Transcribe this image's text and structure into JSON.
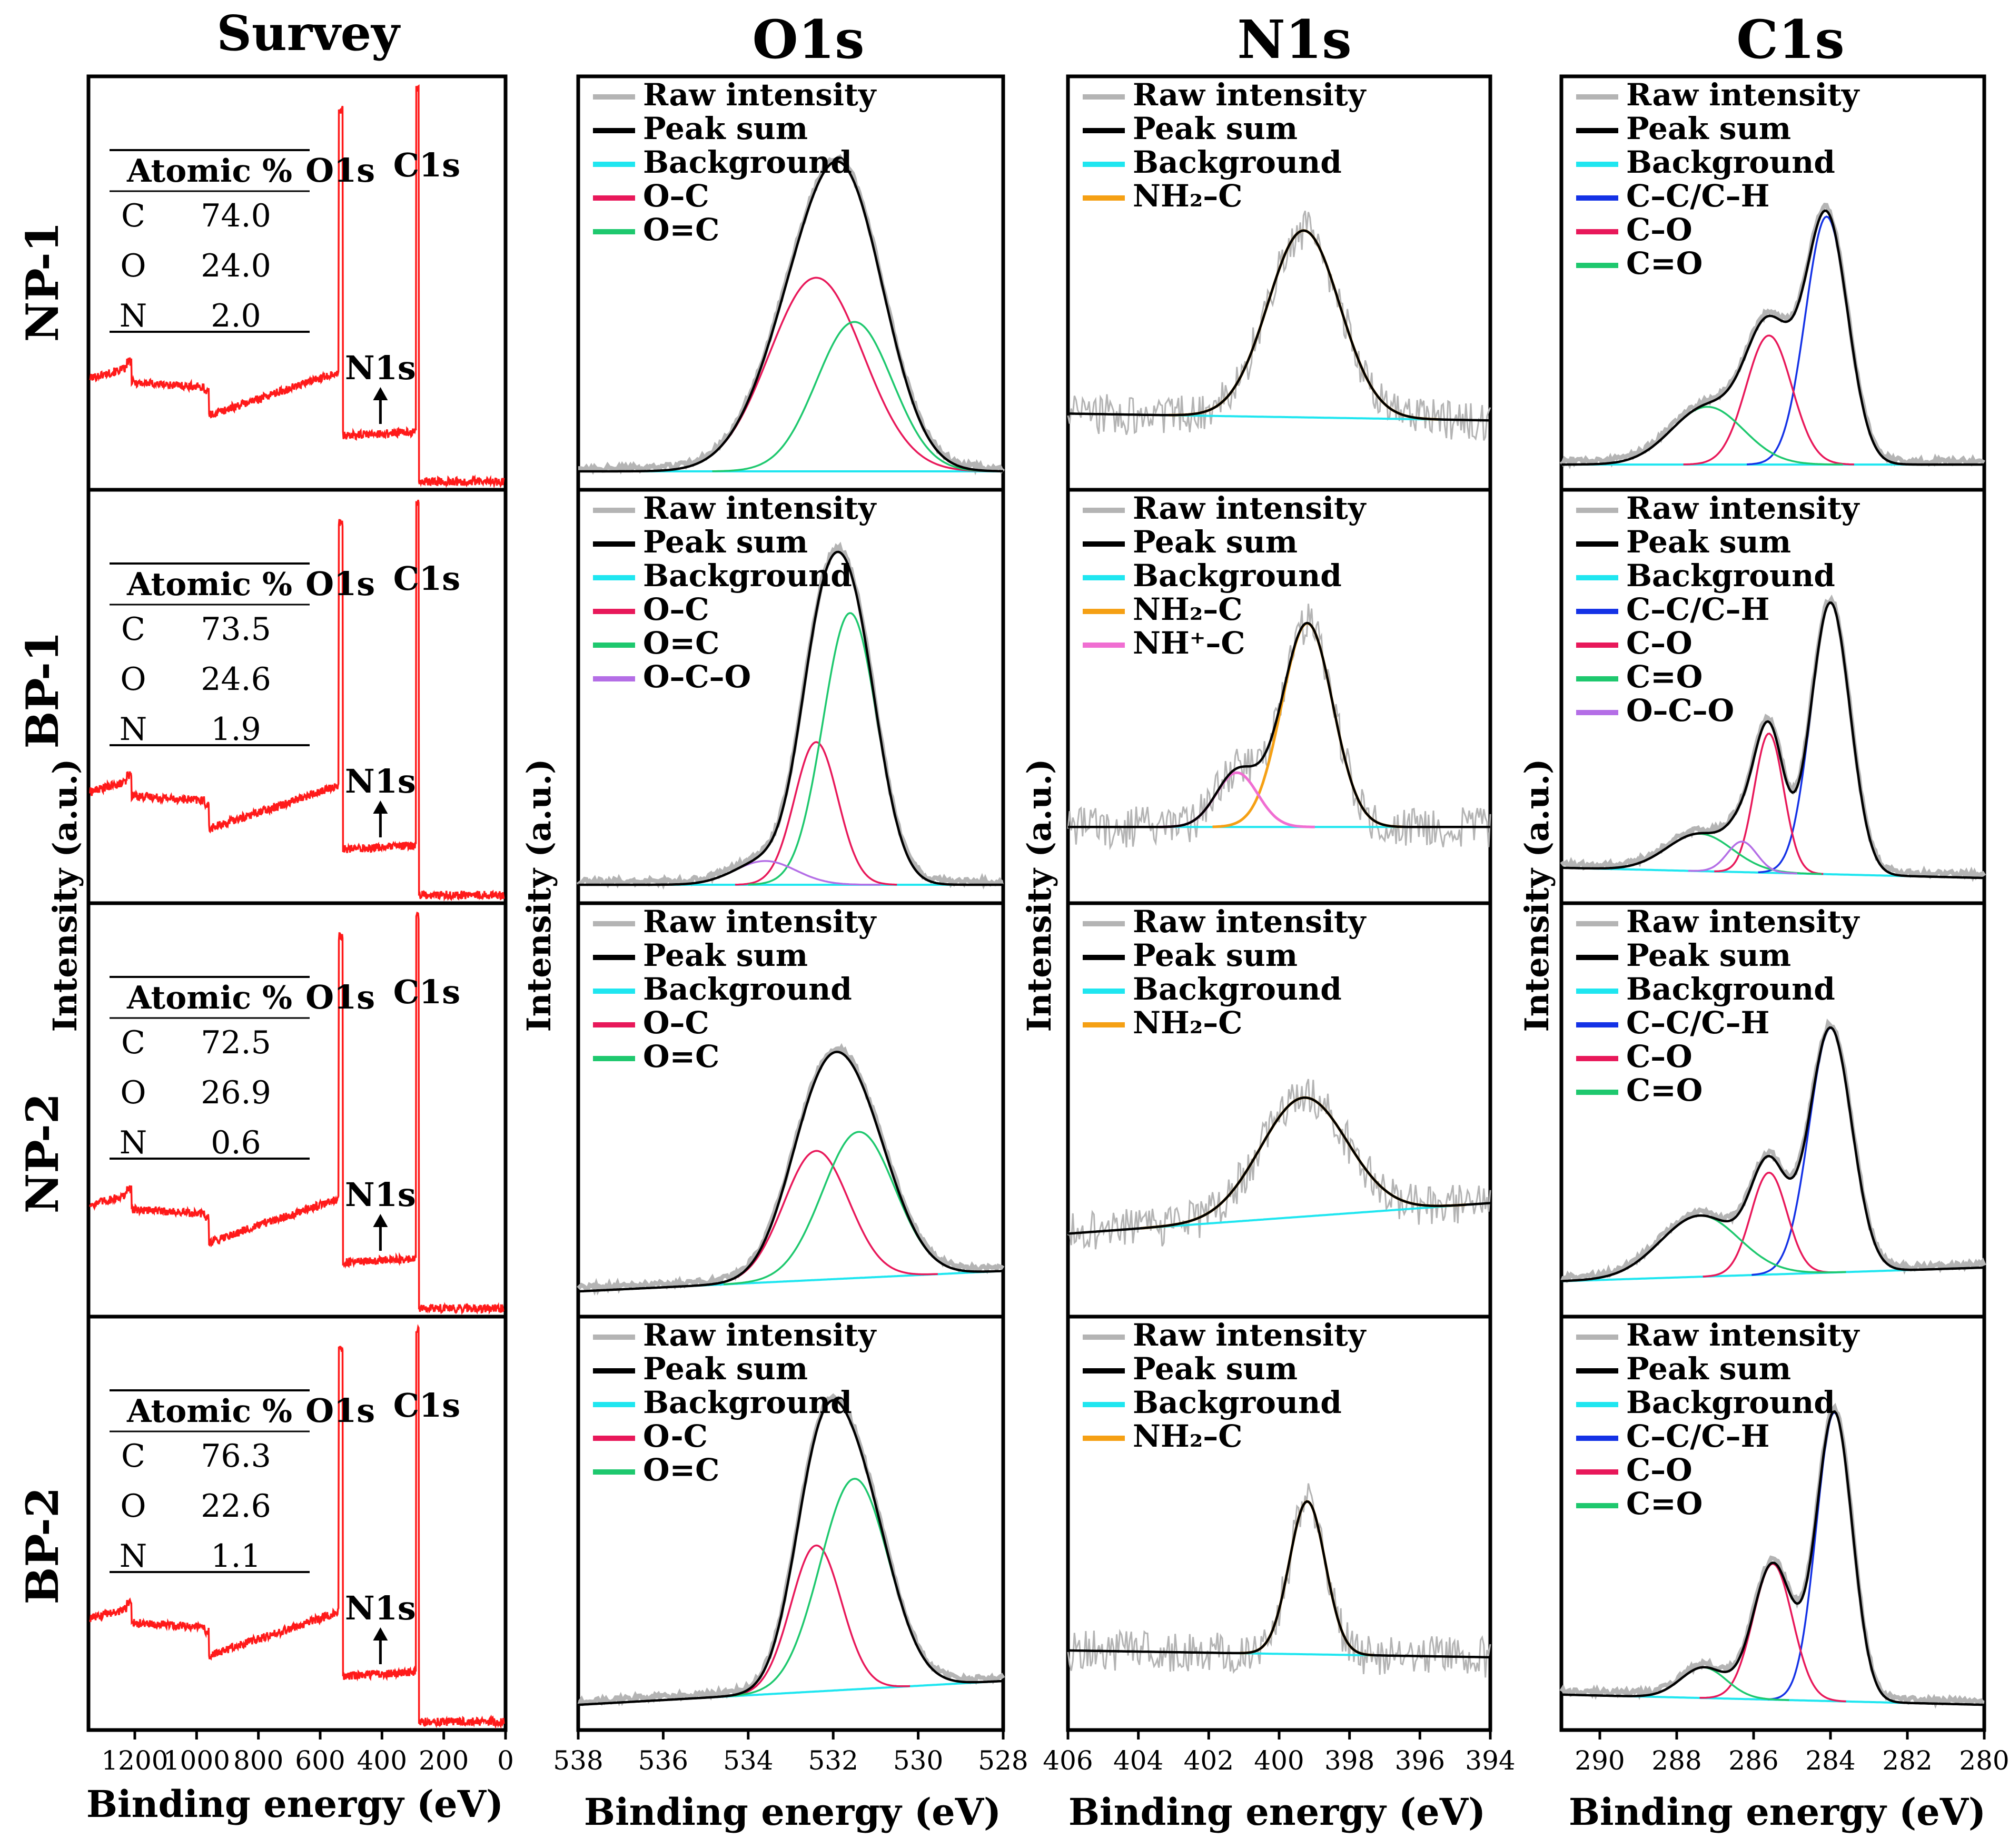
{
  "figure": {
    "columns": [
      "Survey",
      "O1s",
      "N1s",
      "C1s"
    ],
    "rows": [
      "NP-1",
      "BP-1",
      "NP-2",
      "BP-2"
    ],
    "y_axis_label": "Intensity (a.u.)",
    "x_axis_label": "Binding energy (eV)"
  },
  "colors": {
    "raw": "#b4b4b4",
    "sum": "#000000",
    "background": "#1fe6f0",
    "oc_single": "#e8185a",
    "oc_double": "#1ec86e",
    "oco": "#b46ee6",
    "nh2": "#f5a014",
    "nh3": "#f06ed2",
    "cc": "#1432e6",
    "survey": "#ff1a1a"
  },
  "chart_data": [
    {
      "type": "line",
      "panel": "survey",
      "column": "Survey",
      "xlabel": "Binding energy (eV)",
      "ylabel": "Intensity (a.u.)",
      "xlim": [
        1350,
        0
      ],
      "xticks": [
        1200,
        1000,
        800,
        600,
        400,
        200,
        0
      ],
      "peak_labels": [
        "O1s",
        "C1s",
        "N1s"
      ],
      "rows": [
        {
          "sample": "NP-1",
          "atomic_title": "Atomic %",
          "atomic": [
            {
              "el": "C",
              "val": "74.0"
            },
            {
              "el": "O",
              "val": "24.0"
            },
            {
              "el": "N",
              "val": "2.0"
            }
          ]
        },
        {
          "sample": "BP-1",
          "atomic_title": "Atomic %",
          "atomic": [
            {
              "el": "C",
              "val": "73.5"
            },
            {
              "el": "O",
              "val": "24.6"
            },
            {
              "el": "N",
              "val": "1.9"
            }
          ]
        },
        {
          "sample": "NP-2",
          "atomic_title": "Atomic %",
          "atomic": [
            {
              "el": "C",
              "val": "72.5"
            },
            {
              "el": "O",
              "val": "26.9"
            },
            {
              "el": "N",
              "val": "0.6"
            }
          ]
        },
        {
          "sample": "BP-2",
          "atomic_title": "Atomic %",
          "atomic": [
            {
              "el": "C",
              "val": "76.3"
            },
            {
              "el": "O",
              "val": "22.6"
            },
            {
              "el": "N",
              "val": "1.1"
            }
          ]
        }
      ]
    },
    {
      "type": "line",
      "panel": "O1s",
      "column": "O1s",
      "xlabel": "Binding energy (eV)",
      "ylabel": "Intensity (a.u.)",
      "xlim": [
        538,
        528
      ],
      "xticks": [
        538,
        536,
        534,
        532,
        530,
        528
      ],
      "rows": [
        {
          "sample": "NP-1",
          "legend": [
            {
              "label": "Raw intensity",
              "color": "raw"
            },
            {
              "label": "Peak sum",
              "color": "sum"
            },
            {
              "label": "Background",
              "color": "background"
            },
            {
              "label": "O–C",
              "color": "oc_single"
            },
            {
              "label": "O=C",
              "color": "oc_double"
            }
          ],
          "components": [
            {
              "color": "oc_single",
              "center": 532.4,
              "fwhm": 2.6,
              "height": 0.57
            },
            {
              "color": "oc_double",
              "center": 531.5,
              "fwhm": 2.1,
              "height": 0.44
            }
          ],
          "bg": [
            0.0,
            0.0
          ]
        },
        {
          "sample": "BP-1",
          "legend": [
            {
              "label": "Raw intensity",
              "color": "raw"
            },
            {
              "label": "Peak sum",
              "color": "sum"
            },
            {
              "label": "Background",
              "color": "background"
            },
            {
              "label": "O–C",
              "color": "oc_single"
            },
            {
              "label": "O=C",
              "color": "oc_double"
            },
            {
              "label": "O–C–O",
              "color": "oco"
            }
          ],
          "components": [
            {
              "color": "oc_single",
              "center": 532.4,
              "fwhm": 1.2,
              "height": 0.42
            },
            {
              "color": "oc_double",
              "center": 531.6,
              "fwhm": 1.5,
              "height": 0.8
            },
            {
              "color": "oco",
              "center": 533.6,
              "fwhm": 1.7,
              "height": 0.07
            }
          ],
          "bg": [
            0.0,
            0.0
          ]
        },
        {
          "sample": "NP-2",
          "legend": [
            {
              "label": "Raw intensity",
              "color": "raw"
            },
            {
              "label": "Peak sum",
              "color": "sum"
            },
            {
              "label": "Background",
              "color": "background"
            },
            {
              "label": "O–C",
              "color": "oc_single"
            },
            {
              "label": "O=C",
              "color": "oc_double"
            }
          ],
          "components": [
            {
              "color": "oc_single",
              "center": 532.4,
              "fwhm": 1.8,
              "height": 0.38
            },
            {
              "color": "oc_double",
              "center": 531.4,
              "fwhm": 2.0,
              "height": 0.43
            }
          ],
          "bg": [
            0.02,
            0.08
          ]
        },
        {
          "sample": "BP-2",
          "legend": [
            {
              "label": "Raw intensity",
              "color": "raw"
            },
            {
              "label": "Peak sum",
              "color": "sum"
            },
            {
              "label": "Background",
              "color": "background"
            },
            {
              "label": "O-C",
              "color": "oc_single"
            },
            {
              "label": "O=C",
              "color": "oc_double"
            }
          ],
          "components": [
            {
              "color": "oc_single",
              "center": 532.4,
              "fwhm": 1.4,
              "height": 0.43
            },
            {
              "color": "oc_double",
              "center": 531.5,
              "fwhm": 1.9,
              "height": 0.62
            }
          ],
          "bg": [
            0.02,
            0.09
          ]
        }
      ]
    },
    {
      "type": "line",
      "panel": "N1s",
      "column": "N1s",
      "xlabel": "Binding energy (eV)",
      "ylabel": "Intensity (a.u.)",
      "xlim": [
        406,
        394
      ],
      "xticks": [
        406,
        404,
        402,
        400,
        398,
        396,
        394
      ],
      "rows": [
        {
          "sample": "NP-1",
          "legend": [
            {
              "label": "Raw intensity",
              "color": "raw"
            },
            {
              "label": "Peak sum",
              "color": "sum"
            },
            {
              "label": "Background",
              "color": "background"
            },
            {
              "label": "NH₂–C",
              "color": "nh2"
            }
          ],
          "components": [
            {
              "color": "nh2",
              "center": 399.3,
              "fwhm": 2.4,
              "height": 0.55
            }
          ],
          "bg": [
            0.17,
            0.15
          ]
        },
        {
          "sample": "BP-1",
          "legend": [
            {
              "label": "Raw intensity",
              "color": "raw"
            },
            {
              "label": "Peak sum",
              "color": "sum"
            },
            {
              "label": "Background",
              "color": "background"
            },
            {
              "label": "NH₂–C",
              "color": "nh2"
            },
            {
              "label": "NH⁺–C",
              "color": "nh3"
            }
          ],
          "components": [
            {
              "color": "nh2",
              "center": 399.2,
              "fwhm": 1.7,
              "height": 0.6
            },
            {
              "color": "nh3",
              "center": 401.2,
              "fwhm": 1.4,
              "height": 0.16
            }
          ],
          "bg": [
            0.17,
            0.17
          ]
        },
        {
          "sample": "NP-2",
          "legend": [
            {
              "label": "Raw intensity",
              "color": "raw"
            },
            {
              "label": "Peak sum",
              "color": "sum"
            },
            {
              "label": "Background",
              "color": "background"
            },
            {
              "label": "NH₂–C",
              "color": "nh2"
            }
          ],
          "components": [
            {
              "color": "nh2",
              "center": 399.3,
              "fwhm": 2.9,
              "height": 0.35
            }
          ],
          "bg": [
            0.19,
            0.28
          ]
        },
        {
          "sample": "BP-2",
          "legend": [
            {
              "label": "Raw intensity",
              "color": "raw"
            },
            {
              "label": "Peak sum",
              "color": "sum"
            },
            {
              "label": "Background",
              "color": "background"
            },
            {
              "label": "NH₂–C",
              "color": "nh2"
            }
          ],
          "components": [
            {
              "color": "nh2",
              "center": 399.2,
              "fwhm": 1.2,
              "height": 0.45
            }
          ],
          "bg": [
            0.18,
            0.16
          ]
        }
      ]
    },
    {
      "type": "line",
      "panel": "C1s",
      "column": "C1s",
      "xlabel": "Binding energy (eV)",
      "ylabel": "Intensity (a.u.)",
      "xlim": [
        291,
        280
      ],
      "xticks": [
        290,
        288,
        286,
        284,
        282,
        280
      ],
      "rows": [
        {
          "sample": "NP-1",
          "legend": [
            {
              "label": "Raw intensity",
              "color": "raw"
            },
            {
              "label": "Peak sum",
              "color": "sum"
            },
            {
              "label": "Background",
              "color": "background"
            },
            {
              "label": "C–C/C–H",
              "color": "cc"
            },
            {
              "label": "C–O",
              "color": "oc_single"
            },
            {
              "label": "C=O",
              "color": "oc_double"
            }
          ],
          "components": [
            {
              "color": "cc",
              "center": 284.1,
              "fwhm": 1.3,
              "height": 0.73
            },
            {
              "color": "oc_single",
              "center": 285.6,
              "fwhm": 1.4,
              "height": 0.38
            },
            {
              "color": "oc_double",
              "center": 287.2,
              "fwhm": 2.2,
              "height": 0.17
            }
          ],
          "bg": [
            0.02,
            0.02
          ]
        },
        {
          "sample": "BP-1",
          "legend": [
            {
              "label": "Raw intensity",
              "color": "raw"
            },
            {
              "label": "Peak sum",
              "color": "sum"
            },
            {
              "label": "Background",
              "color": "background"
            },
            {
              "label": "C–C/C–H",
              "color": "cc"
            },
            {
              "label": "C–O",
              "color": "oc_single"
            },
            {
              "label": "C=O",
              "color": "oc_double"
            },
            {
              "label": "O–C–O",
              "color": "oco"
            }
          ],
          "components": [
            {
              "color": "cc",
              "center": 284.0,
              "fwhm": 1.2,
              "height": 0.8
            },
            {
              "color": "oc_single",
              "center": 285.6,
              "fwhm": 0.9,
              "height": 0.41
            },
            {
              "color": "oc_double",
              "center": 287.4,
              "fwhm": 2.0,
              "height": 0.11
            },
            {
              "color": "oco",
              "center": 286.3,
              "fwhm": 0.9,
              "height": 0.09
            }
          ],
          "bg": [
            0.05,
            0.02
          ]
        },
        {
          "sample": "NP-2",
          "legend": [
            {
              "label": "Raw intensity",
              "color": "raw"
            },
            {
              "label": "Peak sum",
              "color": "sum"
            },
            {
              "label": "Background",
              "color": "background"
            },
            {
              "label": "C–C/C–H",
              "color": "cc"
            },
            {
              "label": "C–O",
              "color": "oc_single"
            },
            {
              "label": "C=O",
              "color": "oc_double"
            }
          ],
          "components": [
            {
              "color": "cc",
              "center": 284.0,
              "fwhm": 1.3,
              "height": 0.72
            },
            {
              "color": "oc_single",
              "center": 285.6,
              "fwhm": 1.1,
              "height": 0.3
            },
            {
              "color": "oc_double",
              "center": 287.4,
              "fwhm": 2.4,
              "height": 0.18
            }
          ],
          "bg": [
            0.05,
            0.09
          ]
        },
        {
          "sample": "BP-2",
          "legend": [
            {
              "label": "Raw intensity",
              "color": "raw"
            },
            {
              "label": "Peak sum",
              "color": "sum"
            },
            {
              "label": "Background",
              "color": "background"
            },
            {
              "label": "C–C/C–H",
              "color": "cc"
            },
            {
              "label": "C–O",
              "color": "oc_single"
            },
            {
              "label": "C=O",
              "color": "oc_double"
            }
          ],
          "components": [
            {
              "color": "cc",
              "center": 283.9,
              "fwhm": 1.1,
              "height": 0.85
            },
            {
              "color": "oc_single",
              "center": 285.5,
              "fwhm": 1.2,
              "height": 0.4
            },
            {
              "color": "oc_double",
              "center": 287.3,
              "fwhm": 1.4,
              "height": 0.09
            }
          ],
          "bg": [
            0.05,
            0.02
          ]
        }
      ]
    }
  ]
}
